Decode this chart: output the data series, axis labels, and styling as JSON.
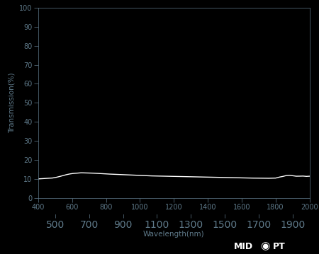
{
  "background_color": "#000000",
  "text_color": "#5f7a8a",
  "line_color": "#ffffff",
  "xlabel": "Wavelength(nm)",
  "ylabel": "Transmission(%)",
  "xlim": [
    400,
    2000
  ],
  "ylim": [
    0,
    100
  ],
  "xticks_major": [
    400,
    600,
    800,
    1000,
    1200,
    1400,
    1600,
    1800,
    2000
  ],
  "xticks_minor": [
    500,
    700,
    900,
    1100,
    1300,
    1500,
    1700,
    1900
  ],
  "yticks": [
    0,
    10,
    20,
    30,
    40,
    50,
    60,
    70,
    80,
    90,
    100
  ],
  "transmission_wavelengths": [
    400,
    420,
    440,
    460,
    480,
    500,
    520,
    540,
    560,
    580,
    600,
    650,
    700,
    750,
    800,
    850,
    900,
    950,
    1000,
    1050,
    1100,
    1150,
    1200,
    1250,
    1300,
    1350,
    1400,
    1450,
    1500,
    1550,
    1600,
    1650,
    1700,
    1750,
    1800,
    1820,
    1840,
    1860,
    1880,
    1900,
    1920,
    1940,
    1960,
    1980,
    2000
  ],
  "transmission_values": [
    10.1,
    10.2,
    10.3,
    10.4,
    10.5,
    10.8,
    11.2,
    11.7,
    12.2,
    12.6,
    12.9,
    13.3,
    13.2,
    13.0,
    12.7,
    12.5,
    12.3,
    12.1,
    11.9,
    11.7,
    11.6,
    11.5,
    11.4,
    11.3,
    11.2,
    11.1,
    11.0,
    10.9,
    10.8,
    10.7,
    10.6,
    10.5,
    10.5,
    10.4,
    10.5,
    11.0,
    11.3,
    11.8,
    12.0,
    11.8,
    11.5,
    11.5,
    11.6,
    11.4,
    11.5
  ]
}
